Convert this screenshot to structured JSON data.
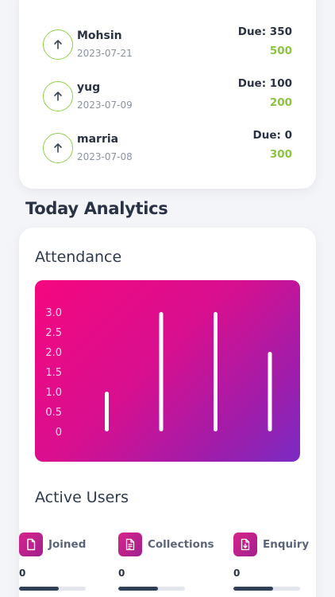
{
  "payments": [
    {
      "name": "Mohsin",
      "date": "2023-07-21",
      "due": "Due: 350",
      "amount": "500"
    },
    {
      "name": "yug",
      "date": "2023-07-09",
      "due": "Due: 100",
      "amount": "200"
    },
    {
      "name": "marria",
      "date": "2023-07-08",
      "due": "Due: 0",
      "amount": "300"
    }
  ],
  "colors": {
    "accent_green": "#8bc53f",
    "gradient_start": "#f5077f",
    "gradient_end": "#7a2bc4"
  },
  "today_analytics": {
    "heading": "Today Analytics",
    "attendance_title": "Attendance",
    "active_users_title": "Active Users",
    "stats": [
      {
        "label": "Joined",
        "value": "0",
        "icon": "document-icon",
        "progress": 0.6
      },
      {
        "label": "Collections",
        "value": "0",
        "icon": "invoice-icon",
        "progress": 0.6
      },
      {
        "label": "Enquiry",
        "value": "0",
        "icon": "download-document-icon",
        "progress": 0.6
      }
    ]
  },
  "chart_data": {
    "type": "bar",
    "title": "Attendance",
    "ylabels": [
      "3.0",
      "2.5",
      "2.0",
      "1.5",
      "1.0",
      "0.5",
      "0"
    ],
    "ylim": [
      0,
      3
    ],
    "values": [
      0,
      1,
      3,
      3,
      2
    ],
    "xlabel": "",
    "ylabel": "",
    "grid": false
  }
}
